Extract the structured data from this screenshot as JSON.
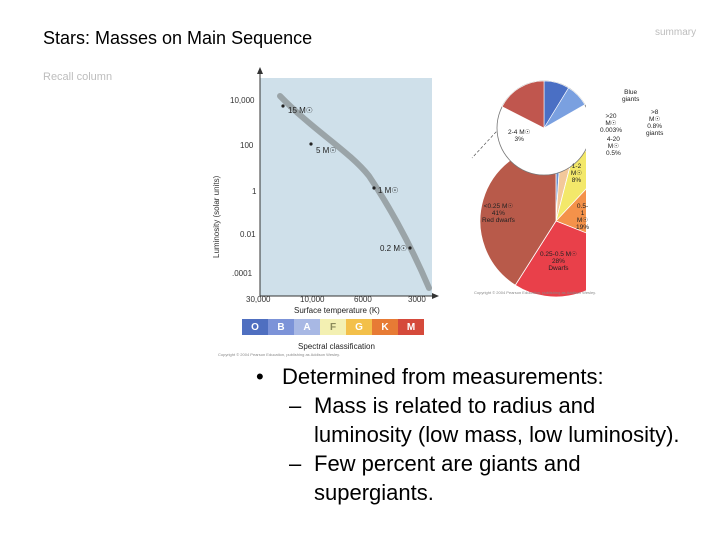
{
  "slide": {
    "title": "Stars: Masses on Main Sequence",
    "summary": "summary",
    "recall": "Recall column"
  },
  "hr_diagram": {
    "y_axis_label": "Luminosity (solar units)",
    "y_ticks": [
      "10,000",
      "100",
      "1",
      "0.01",
      ".0001"
    ],
    "x_ticks": [
      "30,000",
      "10,000",
      "6000",
      "3000"
    ],
    "x_label": "Surface temperature (K)",
    "mass_labels": [
      "15 M☉",
      "5 M☉",
      "1 M☉",
      "0.2 M☉"
    ],
    "spectral_classes": [
      "O",
      "B",
      "A",
      "F",
      "G",
      "K",
      "M"
    ],
    "spectral_colors": [
      "#4f6fc0",
      "#7c93d8",
      "#a8b8e4",
      "#f3f0b2",
      "#f3c04a",
      "#e77b35",
      "#d54a3b"
    ],
    "spectral_label": "Spectral classification",
    "credit": "Copyright © 2004 Pearson Education, publishing as Addison Wesley."
  },
  "chart_data": {
    "type": "pie",
    "title": "",
    "categories": [
      "<0.25 M☉ Red dwarfs",
      "0.25-0.5 M☉ Dwarfs",
      "0.5-1 M☉",
      "1-2 M☉",
      "2-4 M☉",
      "Blue giants"
    ],
    "values": [
      41,
      28,
      19,
      8,
      3,
      1
    ],
    "labels_text": [
      "<0.25 M☉",
      "41%",
      "Red dwarfs",
      "0.25-0.5 M☉",
      "28%",
      "Dwarfs",
      "0.5-1 M☉",
      "19%",
      "1-2 M☉",
      "8%",
      "2-4 M☉",
      "3%",
      "Blue giants",
      ">20 M☉",
      "0.003%",
      "4-20 M☉",
      "0.5%",
      ">8 M☉",
      "0.8%",
      "giants"
    ],
    "colors": [
      "#b85a4a",
      "#e9404a",
      "#f4924a",
      "#f3e86a",
      "#f3c89a",
      "#6a8fd0"
    ],
    "credit": "Copyright © 2004 Pearson Education, publishing as Addison Wesley."
  },
  "bullets": {
    "main": "Determined from measurements:",
    "sub1_line1": "Mass is related to radius and",
    "sub1_line2": "luminosity (low mass, low luminosity).",
    "sub2_line1": "Few percent are giants and",
    "sub2_line2": "supergiants."
  }
}
